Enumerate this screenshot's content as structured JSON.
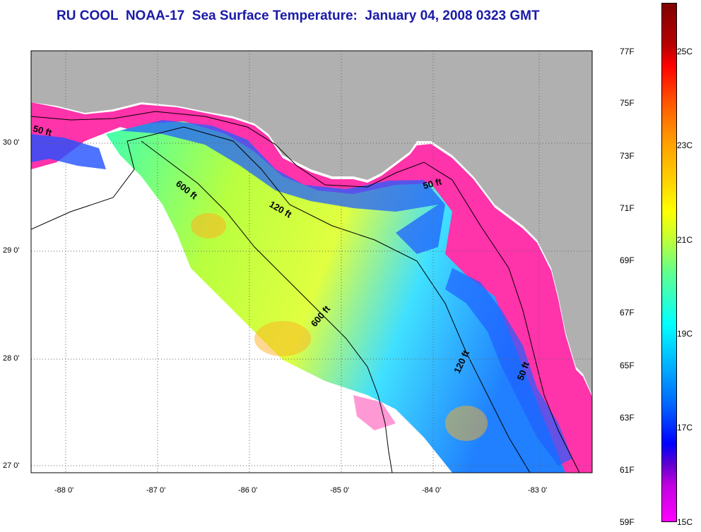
{
  "title": "RU COOL  NOAA-17  Sea Surface Temperature:  January 04, 2008 0323 GMT",
  "map": {
    "lat_ticks": [
      "30 0'",
      "29 0'",
      "28 0'",
      "27 0'"
    ],
    "lon_ticks": [
      "-88 0'",
      "-87 0'",
      "-86 0'",
      "-85 0'",
      "-84 0'",
      "-83 0'"
    ],
    "contour_labels": [
      "50 ft",
      "600 ft",
      "120 ft",
      "50 ft",
      "600 ft",
      "120 ft",
      "50 ft"
    ],
    "colors": {
      "land": "#b0b0b0",
      "cold": "#ff33aa",
      "no_data": "#ffffff",
      "grid": "#666666"
    }
  },
  "colorbar": {
    "fahrenheit": [
      "77F",
      "75F",
      "73F",
      "71F",
      "69F",
      "67F",
      "65F",
      "63F",
      "61F",
      "59F"
    ],
    "celsius": [
      "25C",
      "23C",
      "21C",
      "19C",
      "17C",
      "15C"
    ]
  }
}
